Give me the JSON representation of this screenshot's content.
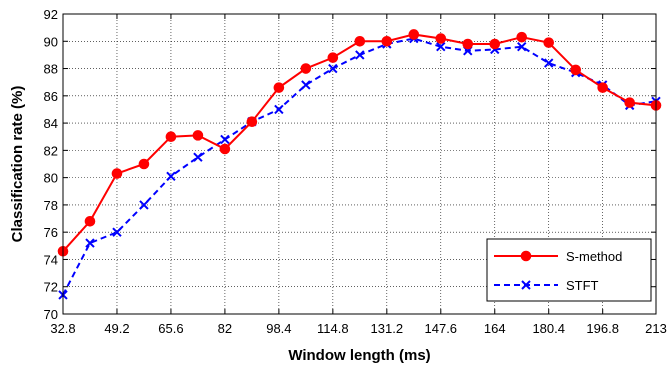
{
  "chart_data": {
    "type": "line",
    "title": "",
    "xlabel": "Window length (ms)",
    "ylabel": "Classification rate (%)",
    "xlim": [
      32.8,
      213
    ],
    "ylim": [
      70,
      92
    ],
    "xticks": [
      "32.8",
      "49.2",
      "65.6",
      "82",
      "98.4",
      "114.8",
      "131.2",
      "147.6",
      "164",
      "180.4",
      "196.8",
      "213"
    ],
    "yticks": [
      "70",
      "72",
      "74",
      "76",
      "78",
      "80",
      "82",
      "84",
      "86",
      "88",
      "90",
      "92"
    ],
    "grid": true,
    "legend_position": "bottom-right",
    "x": [
      32.8,
      41,
      49.2,
      57.4,
      65.6,
      73.8,
      82,
      90.2,
      98.4,
      106.6,
      114.8,
      123,
      131.2,
      139.4,
      147.6,
      155.8,
      164,
      172.2,
      180.4,
      188.6,
      196.8,
      205,
      213
    ],
    "series": [
      {
        "name": "S-method",
        "color": "#ff0000",
        "style": "solid",
        "marker": "circle",
        "values": [
          74.6,
          76.8,
          80.3,
          81.0,
          83.0,
          83.1,
          82.1,
          84.1,
          86.6,
          88.0,
          88.8,
          90.0,
          90.0,
          90.5,
          90.2,
          89.8,
          89.8,
          90.3,
          89.9,
          87.9,
          86.6,
          85.5,
          85.3
        ]
      },
      {
        "name": "STFT",
        "color": "#0000ff",
        "style": "dashed",
        "marker": "x",
        "values": [
          71.4,
          75.2,
          76.0,
          78.0,
          80.1,
          81.5,
          82.8,
          84.1,
          85.0,
          86.8,
          88.0,
          89.0,
          89.8,
          90.2,
          89.6,
          89.3,
          89.4,
          89.6,
          88.4,
          87.7,
          86.8,
          85.3,
          85.6
        ]
      }
    ]
  }
}
